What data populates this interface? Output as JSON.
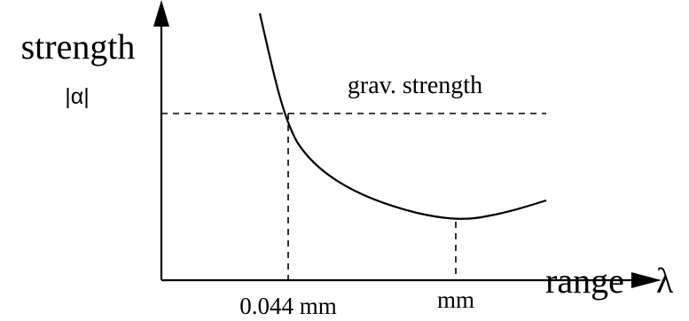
{
  "labels": {
    "y_axis": "strength",
    "y_axis_symbol": "|α|",
    "x_axis": "range",
    "x_axis_symbol": "λ",
    "reference_line": "grav. strength",
    "tick_left": "0.044 mm",
    "tick_right": "mm"
  },
  "colors": {
    "ink": "#000000",
    "background": "#ffffff"
  }
}
